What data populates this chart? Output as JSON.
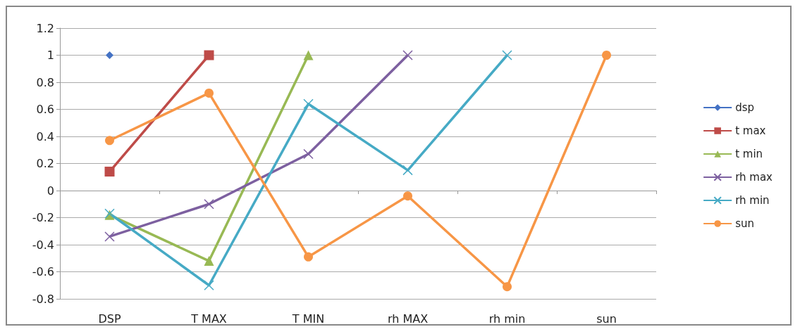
{
  "chart_data": {
    "type": "line",
    "categories": [
      "DSP",
      "T MAX",
      "T MIN",
      "rh MAX",
      "rh min",
      "sun"
    ],
    "series": [
      {
        "name": "dsp",
        "color": "#4472c4",
        "marker": "diamond",
        "values": [
          1,
          null,
          null,
          null,
          null,
          null
        ]
      },
      {
        "name": "t max",
        "color": "#be4b48",
        "marker": "square",
        "values": [
          0.14,
          1,
          null,
          null,
          null,
          null
        ]
      },
      {
        "name": "t min",
        "color": "#98b954",
        "marker": "triangle",
        "values": [
          -0.18,
          -0.52,
          1,
          null,
          null,
          null
        ]
      },
      {
        "name": "rh max",
        "color": "#7d60a0",
        "marker": "cross",
        "values": [
          -0.34,
          -0.1,
          0.27,
          1,
          null,
          null
        ]
      },
      {
        "name": "rh min",
        "color": "#46aac5",
        "marker": "cross",
        "values": [
          -0.17,
          -0.7,
          0.64,
          0.15,
          1,
          null
        ]
      },
      {
        "name": "sun",
        "color": "#f79646",
        "marker": "circle",
        "values": [
          0.37,
          0.72,
          -0.49,
          -0.04,
          -0.71,
          1
        ]
      }
    ],
    "ylim": [
      -0.8,
      1.2
    ],
    "yticks": [
      -0.8,
      -0.6,
      -0.4,
      -0.2,
      0,
      0.2,
      0.4,
      0.6,
      0.8,
      1,
      1.2
    ],
    "grid": "y",
    "legend": "right"
  }
}
